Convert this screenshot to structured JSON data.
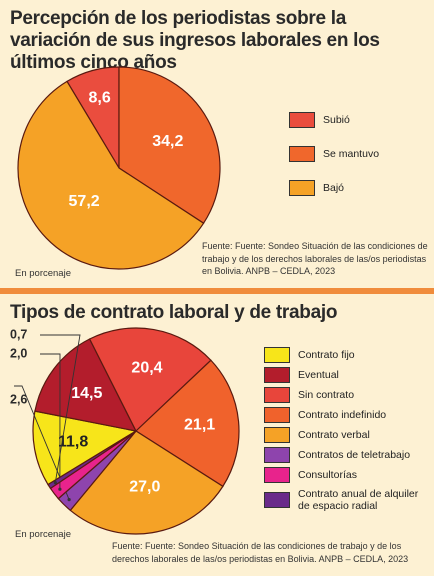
{
  "chart_data": [
    {
      "type": "pie",
      "title": "Percepción de los periodistas sobre la variación de sus ingresos laborales en los últimos cinco años",
      "categories": [
        "Subió",
        "Se mantuvo",
        "Bajó"
      ],
      "values": [
        8.6,
        34.2,
        57.2
      ],
      "value_labels": [
        "8,6",
        "34,2",
        "57,2"
      ],
      "colors": [
        "#ea4d3e",
        "#f0672c",
        "#f5a226"
      ],
      "unit": "En porcenaje",
      "source": "Fuente: Fuente: Sondeo Situación de las condiciones de trabajo y de los derechos laborales de las/os periodistas en Bolivia. ANPB – CEDLA, 2023",
      "legend_position": "right"
    },
    {
      "type": "pie",
      "title": "Tipos de contrato laboral y de trabajo",
      "categories": [
        "Contrato fijo",
        "Eventual",
        "Sin contrato",
        "Contrato indefinido",
        "Contrato verbal",
        "Contratos de teletrabajo",
        "Consultorías",
        "Contrato anual de alquiler de espacio radial"
      ],
      "values": [
        11.8,
        14.5,
        20.4,
        21.1,
        27.0,
        2.6,
        2.0,
        0.7
      ],
      "value_labels": [
        "11,8",
        "14,5",
        "20,4",
        "21,1",
        "27,0",
        "2,6",
        "2,0",
        "0,7"
      ],
      "colors": [
        "#f7e51a",
        "#b31d2c",
        "#e8453b",
        "#f0622c",
        "#f5a226",
        "#8e44ad",
        "#e8238c",
        "#6a2a8a"
      ],
      "unit": "En porcenaje",
      "source": "Fuente: Fuente: Sondeo Situación de las condiciones de trabajo y de los derechos laborales de las/os periodistas en Bolivia. ANPB – CEDLA, 2023",
      "legend_position": "right"
    }
  ]
}
